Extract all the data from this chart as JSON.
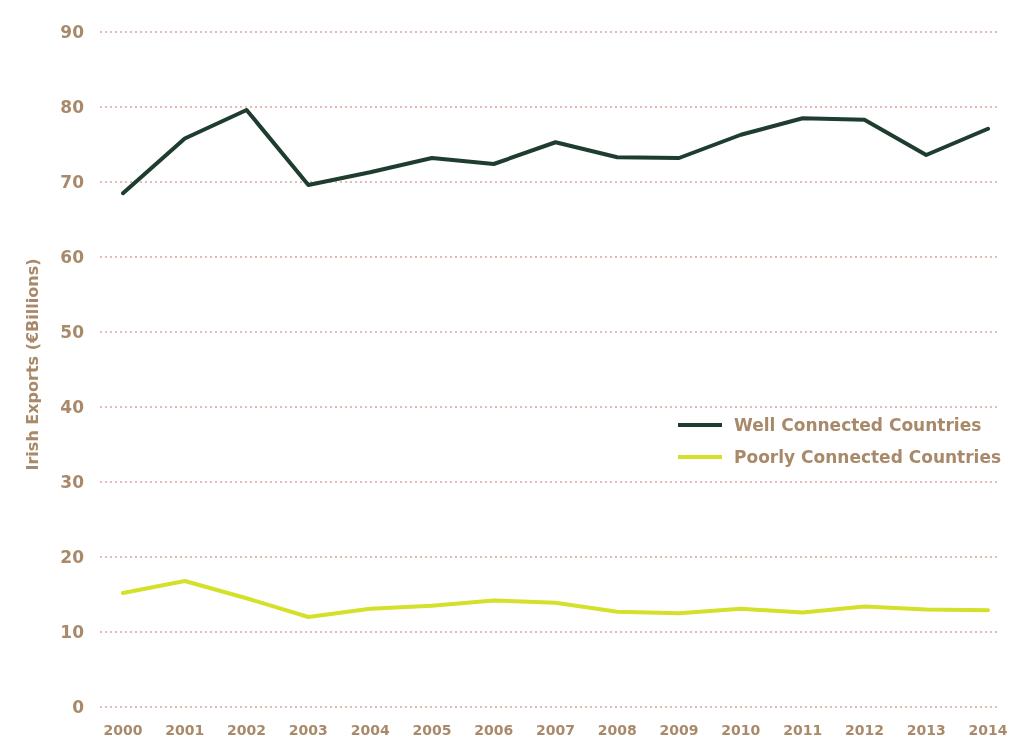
{
  "chart_data": {
    "type": "line",
    "ylabel": "Irish Exports (€Billions)",
    "categories": [
      "2000",
      "2001",
      "2002",
      "2003",
      "2004",
      "2005",
      "2006",
      "2007",
      "2008",
      "2009",
      "2010",
      "2011",
      "2012",
      "2013",
      "2014"
    ],
    "series": [
      {
        "name": "Well Connected Countries",
        "color": "#1e3d2f",
        "values": [
          68.5,
          75.8,
          79.6,
          69.6,
          71.3,
          73.2,
          72.4,
          75.3,
          73.3,
          73.2,
          76.3,
          78.5,
          78.3,
          73.6,
          77.1
        ]
      },
      {
        "name": "Poorly Connected Countries",
        "color": "#d4e02a",
        "values": [
          15.2,
          16.8,
          14.5,
          12.0,
          13.1,
          13.5,
          14.2,
          13.9,
          12.7,
          12.5,
          13.1,
          12.6,
          13.4,
          13.0,
          12.9
        ]
      }
    ],
    "ylim": [
      0,
      90
    ],
    "yticks": [
      0,
      10,
      20,
      30,
      40,
      50,
      60,
      70,
      80,
      90
    ],
    "grid": "y",
    "legend": "right",
    "line_style": "solid",
    "marker": "none"
  }
}
